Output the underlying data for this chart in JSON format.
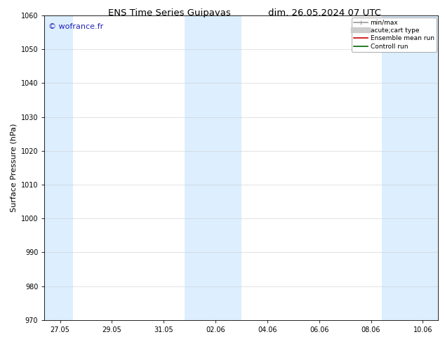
{
  "title_left": "ENS Time Series Guipavas",
  "title_right": "dim. 26.05.2024 07 UTC",
  "ylabel": "Surface Pressure (hPa)",
  "ylim": [
    970,
    1060
  ],
  "yticks": [
    970,
    980,
    990,
    1000,
    1010,
    1020,
    1030,
    1040,
    1050,
    1060
  ],
  "xtick_labels": [
    "27.05",
    "29.05",
    "31.05",
    "02.06",
    "04.06",
    "06.06",
    "08.06",
    "10.06"
  ],
  "watermark": "© wofrance.fr",
  "watermark_color": "#2222bb",
  "bg_color": "#ffffff",
  "plot_bg_color": "#ffffff",
  "shaded_color": "#ddeeff",
  "shaded_bands_frac": [
    {
      "xmin": 0.0,
      "xmax": 0.072
    },
    {
      "xmin": 0.355,
      "xmax": 0.5
    },
    {
      "xmin": 0.856,
      "xmax": 1.0
    }
  ],
  "legend_entries": [
    {
      "label": "min/max",
      "color": "#999999",
      "lw": 1.2
    },
    {
      "label": "acute;cart type",
      "color": "#cccccc",
      "lw": 6.0
    },
    {
      "label": "Ensemble mean run",
      "color": "#cc0000",
      "lw": 1.2
    },
    {
      "label": "Controll run",
      "color": "#006600",
      "lw": 1.2
    }
  ],
  "title_fontsize": 9.5,
  "axis_label_fontsize": 8,
  "tick_fontsize": 7,
  "legend_fontsize": 6.5,
  "watermark_fontsize": 8
}
